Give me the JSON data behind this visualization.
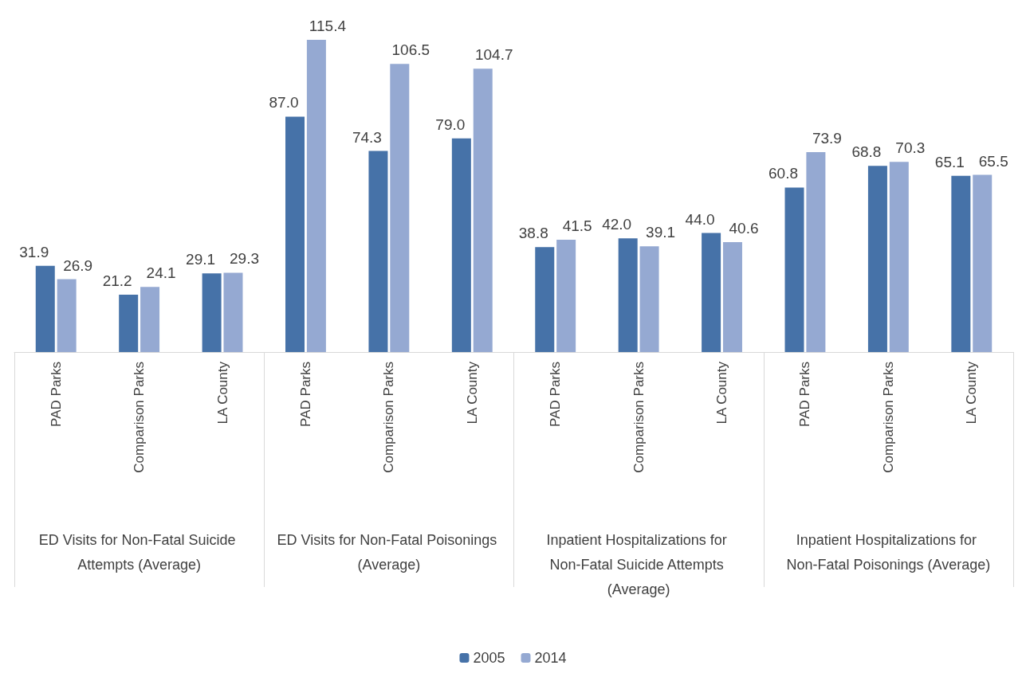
{
  "chart_data": {
    "type": "bar",
    "categories": [
      "PAD Parks",
      "Comparison Parks",
      "LA County",
      "PAD Parks",
      "Comparison Parks",
      "LA County",
      "PAD Parks",
      "Comparison Parks",
      "LA County",
      "PAD Parks",
      "Comparison Parks",
      "LA County"
    ],
    "series": [
      {
        "name": "2005",
        "color": "#4672a8",
        "values": [
          31.9,
          21.2,
          29.1,
          87.0,
          74.3,
          79.0,
          38.8,
          42.0,
          44.0,
          60.8,
          68.8,
          65.1
        ],
        "value_labels": [
          "31.9",
          "21.2",
          "29.1",
          "87.0",
          "74.3",
          "79.0",
          "38.8",
          "42.0",
          "44.0",
          "60.8",
          "68.8",
          "65.1"
        ]
      },
      {
        "name": "2014",
        "color": "#95a9d2",
        "values": [
          26.9,
          24.1,
          29.3,
          115.4,
          106.5,
          104.7,
          41.5,
          39.1,
          40.6,
          73.9,
          70.3,
          65.5
        ],
        "value_labels": [
          "26.9",
          "24.1",
          "29.3",
          "115.4",
          "106.5",
          "104.7",
          "41.5",
          "39.1",
          "40.6",
          "73.9",
          "70.3",
          "65.5"
        ]
      }
    ],
    "annotations": [
      "ED Visits for Non-Fatal Suicide Attempts (Average)",
      "ED Visits for Non-Fatal Poisonings (Average)",
      "Inpatient Hospitalizations for Non-Fatal Suicide Attempts (Average)",
      "Inpatient Hospitalizations for Non-Fatal Poisonings (Average)"
    ],
    "legend": "bottom"
  }
}
